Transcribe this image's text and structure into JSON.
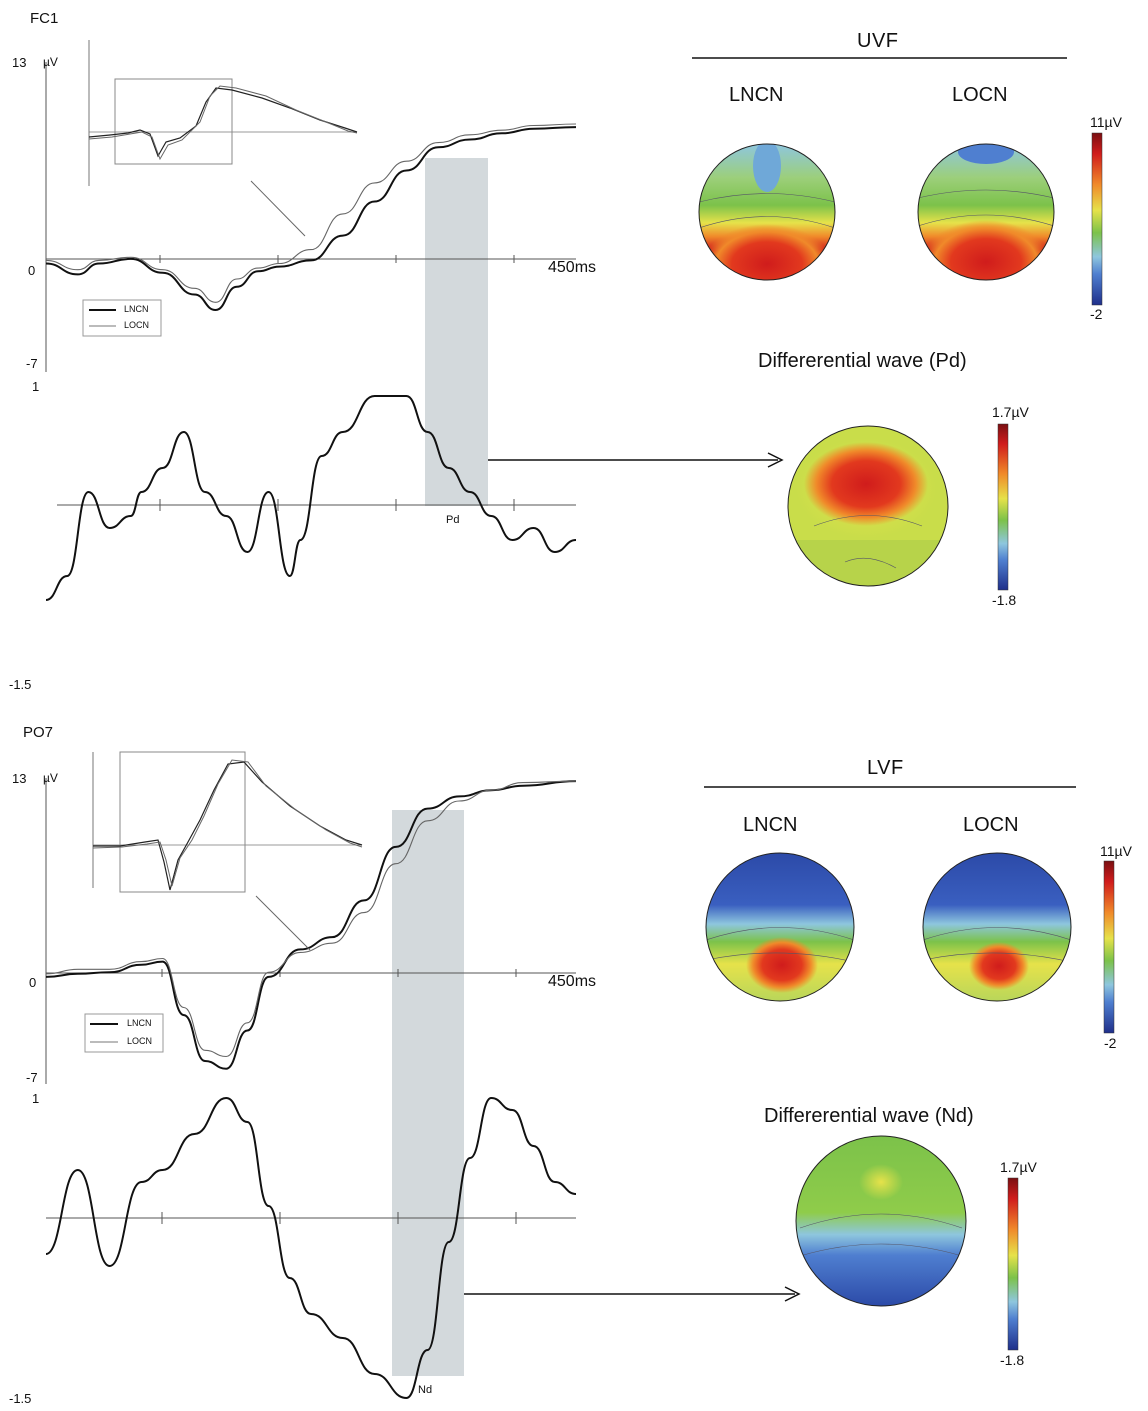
{
  "colors": {
    "trace": "#111111",
    "trace_light": "#666666",
    "window": "#d3d9dc",
    "axis": "#555555",
    "map_red": "#d01c1c",
    "map_yellow": "#e6e24a",
    "map_green": "#7cc24a",
    "map_lightblue": "#8ec6de",
    "map_blue": "#2c4aa8"
  },
  "top": {
    "electrode": "FC1",
    "erp": {
      "ymax_label": "13",
      "unit": "µV",
      "zero_label": "0",
      "ymin_label": "-7",
      "time_label": "450",
      "time_unit": "ms"
    },
    "legend": [
      "LNCN",
      "LOCN"
    ],
    "diff": {
      "ymax_label": "1",
      "ymin_label": "-1.5",
      "component": "Pd"
    },
    "maps": {
      "field_title": "UVF",
      "cond_a": "LNCN",
      "cond_b": "LOCN",
      "scale_max": "11µV",
      "scale_min": "-2",
      "diff_title": "Differerential wave (Pd)",
      "diff_scale_max": "1.7µV",
      "diff_scale_min": "-1.8"
    }
  },
  "bottom": {
    "electrode": "PO7",
    "erp": {
      "ymax_label": "13",
      "unit": "µV",
      "zero_label": "0",
      "ymin_label": "-7",
      "time_label": "450",
      "time_unit": "ms"
    },
    "legend": [
      "LNCN",
      "LOCN"
    ],
    "diff": {
      "ymax_label": "1",
      "ymin_label": "-1.5",
      "component": "Nd"
    },
    "maps": {
      "field_title": "LVF",
      "cond_a": "LNCN",
      "cond_b": "LOCN",
      "scale_max": "11µV",
      "scale_min": "-2",
      "diff_title": "Differerential wave (Nd)",
      "diff_scale_max": "1.7µV",
      "diff_scale_min": "-1.8"
    }
  },
  "chart_data": [
    {
      "type": "line",
      "panel": "FC1 ERP",
      "x_unit": "ms",
      "xlim": [
        -50,
        450
      ],
      "ylim": [
        -7,
        13
      ],
      "x": [
        -50,
        -20,
        0,
        30,
        60,
        90,
        110,
        130,
        150,
        170,
        200,
        230,
        260,
        290,
        320,
        350,
        380,
        410,
        450
      ],
      "series": [
        {
          "name": "LNCN",
          "values": [
            0,
            -0.7,
            0,
            0.3,
            -0.6,
            -2.0,
            -3.0,
            -1.5,
            -0.5,
            -0.2,
            0.2,
            1.8,
            4.0,
            6.0,
            7.5,
            8.0,
            8.4,
            8.7,
            8.8
          ]
        },
        {
          "name": "LOCN",
          "values": [
            0.2,
            -0.4,
            0.2,
            0.4,
            -0.4,
            -1.6,
            -2.5,
            -1.0,
            -0.3,
            0.0,
            0.9,
            3.2,
            5.2,
            6.6,
            7.8,
            8.3,
            8.6,
            8.9,
            9.0
          ]
        }
      ]
    },
    {
      "type": "line",
      "panel": "FC1 difference",
      "x_unit": "ms",
      "xlim": [
        -50,
        450
      ],
      "ylim": [
        -1.5,
        1
      ],
      "x": [
        -50,
        -30,
        -10,
        10,
        30,
        40,
        60,
        80,
        100,
        120,
        140,
        160,
        180,
        190,
        210,
        230,
        260,
        290,
        310,
        330,
        350,
        370,
        390,
        410,
        430,
        450
      ],
      "series": [
        {
          "name": "",
          "values": [
            -0.8,
            -0.6,
            0.1,
            -0.2,
            -0.1,
            0.1,
            0.3,
            0.6,
            0.1,
            -0.1,
            -0.4,
            0.1,
            -0.6,
            -0.3,
            0.4,
            0.6,
            0.9,
            0.9,
            0.6,
            0.3,
            0.1,
            -0.1,
            -0.3,
            -0.2,
            -0.4,
            -0.3
          ]
        }
      ]
    },
    {
      "type": "line",
      "panel": "PO7 ERP",
      "x_unit": "ms",
      "xlim": [
        -50,
        450
      ],
      "ylim": [
        -7,
        13
      ],
      "x": [
        -50,
        -20,
        10,
        40,
        60,
        80,
        100,
        120,
        140,
        160,
        190,
        220,
        250,
        280,
        310,
        340,
        370,
        400,
        450
      ],
      "series": [
        {
          "name": "LNCN",
          "values": [
            0,
            0.2,
            0.3,
            0.8,
            1.0,
            -2.5,
            -5.5,
            -6.0,
            -3.5,
            0,
            1.8,
            2.6,
            5.0,
            8.5,
            11.0,
            11.8,
            12.2,
            12.5,
            12.8
          ]
        },
        {
          "name": "LOCN",
          "values": [
            0.2,
            0.5,
            0.5,
            1.0,
            1.2,
            -2.0,
            -4.8,
            -5.2,
            -3.0,
            0.3,
            1.6,
            2.2,
            4.2,
            7.4,
            10.2,
            11.5,
            12.2,
            12.7,
            12.8
          ]
        }
      ]
    },
    {
      "type": "line",
      "panel": "PO7 difference",
      "x_unit": "ms",
      "xlim": [
        -50,
        450
      ],
      "ylim": [
        -1.5,
        1
      ],
      "x": [
        -50,
        -20,
        10,
        40,
        60,
        90,
        120,
        140,
        160,
        180,
        200,
        230,
        260,
        290,
        310,
        330,
        350,
        370,
        390,
        410,
        430,
        450
      ],
      "series": [
        {
          "name": "",
          "values": [
            -0.3,
            0.4,
            -0.4,
            0.3,
            0.4,
            0.7,
            1.0,
            0.8,
            0.1,
            -0.5,
            -0.8,
            -1.0,
            -1.3,
            -1.5,
            -1.1,
            -0.2,
            0.5,
            1.0,
            0.9,
            0.6,
            0.3,
            0.2
          ]
        }
      ]
    }
  ]
}
